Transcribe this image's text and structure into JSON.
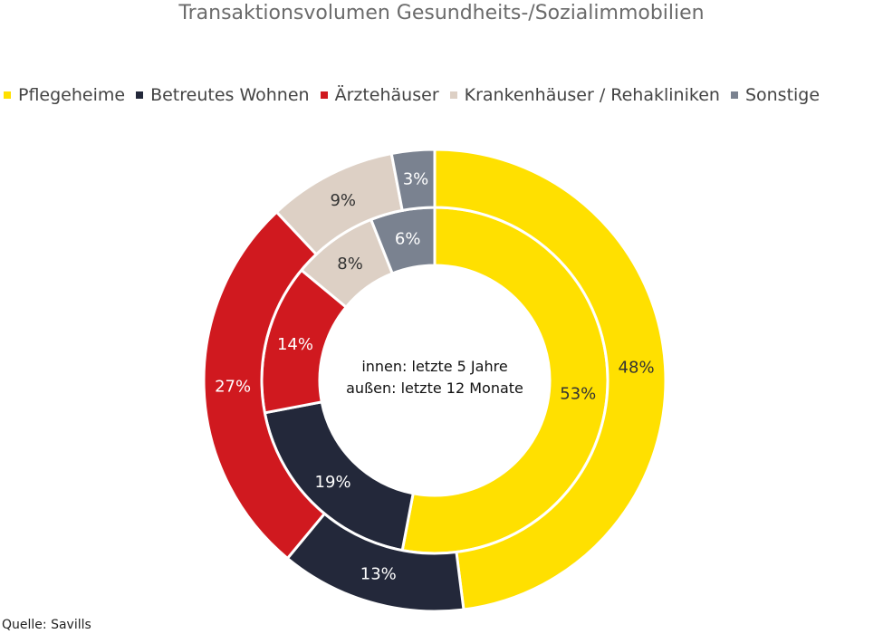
{
  "chart_data": {
    "type": "pie",
    "subtype": "double-donut",
    "title": "Transaktionsvolumen Gesundheits-/Sozialimmobilien",
    "categories": [
      "Pflegeheime",
      "Betreutes Wohnen",
      "Ärztehäuser",
      "Krankenhäuser / Rehakliniken",
      "Sonstige"
    ],
    "colors": [
      "#FFE000",
      "#23283A",
      "#D0191F",
      "#DDD0C5",
      "#7A8290"
    ],
    "label_colors": [
      "#333333",
      "#ffffff",
      "#ffffff",
      "#333333",
      "#ffffff"
    ],
    "series": [
      {
        "name": "innen: letzte 5 Jahre",
        "ring": "inner",
        "values": [
          53,
          19,
          14,
          8,
          6
        ]
      },
      {
        "name": "außen: letzte 12 Monate",
        "ring": "outer",
        "values": [
          48,
          13,
          27,
          9,
          3
        ]
      }
    ],
    "value_suffix": "%",
    "center_text": [
      "innen: letzte 5 Jahre",
      "außen: letzte 12 Monate"
    ],
    "legend_position": "top",
    "source": "Quelle: Savills"
  }
}
